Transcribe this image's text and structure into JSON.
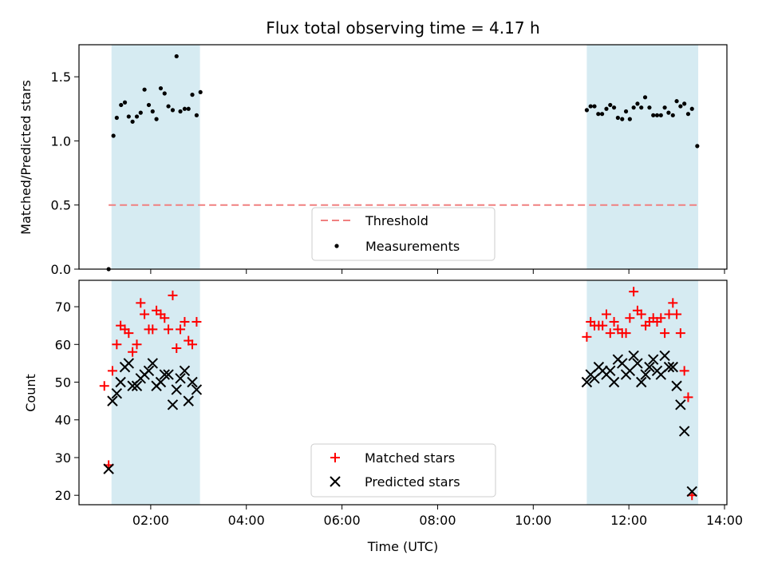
{
  "chart_data": {
    "title": "Flux total observing time = 4.17 h",
    "xlabel": "Time (UTC)",
    "x_unit": "hours UTC",
    "xlim": [
      0.5,
      14.05
    ],
    "xticks": [
      2,
      4,
      6,
      8,
      10,
      12,
      14
    ],
    "xtick_labels": [
      "02:00",
      "04:00",
      "06:00",
      "08:00",
      "10:00",
      "12:00",
      "14:00"
    ],
    "observing_windows": [
      [
        1.18,
        3.03
      ],
      [
        11.12,
        13.45
      ]
    ],
    "window_color": "#add8e6",
    "panels": [
      {
        "type": "scatter",
        "ylabel": "Matched/Predicted stars",
        "ylim": [
          0,
          1.75
        ],
        "yticks": [
          0.0,
          0.5,
          1.0,
          1.5
        ],
        "ytick_labels": [
          "0.0",
          "0.5",
          "1.0",
          "1.5"
        ],
        "legend_placement": "lower-center",
        "series": [
          {
            "name": "Threshold",
            "kind": "dashed-line",
            "color": "#f08080",
            "points": [
              [
                1.12,
                0.5
              ],
              [
                13.45,
                0.5
              ]
            ]
          },
          {
            "name": "Measurements",
            "kind": "dot",
            "color": "#000000",
            "points": [
              [
                1.12,
                0.0
              ],
              [
                1.22,
                1.04
              ],
              [
                1.29,
                1.18
              ],
              [
                1.38,
                1.28
              ],
              [
                1.46,
                1.3
              ],
              [
                1.54,
                1.19
              ],
              [
                1.62,
                1.15
              ],
              [
                1.71,
                1.19
              ],
              [
                1.79,
                1.22
              ],
              [
                1.87,
                1.4
              ],
              [
                1.96,
                1.28
              ],
              [
                2.04,
                1.23
              ],
              [
                2.12,
                1.17
              ],
              [
                2.21,
                1.41
              ],
              [
                2.29,
                1.37
              ],
              [
                2.37,
                1.27
              ],
              [
                2.46,
                1.24
              ],
              [
                2.54,
                1.66
              ],
              [
                2.62,
                1.23
              ],
              [
                2.71,
                1.25
              ],
              [
                2.79,
                1.25
              ],
              [
                2.87,
                1.36
              ],
              [
                2.96,
                1.2
              ],
              [
                3.04,
                1.38
              ],
              [
                11.12,
                1.24
              ],
              [
                11.2,
                1.27
              ],
              [
                11.28,
                1.27
              ],
              [
                11.36,
                1.21
              ],
              [
                11.44,
                1.21
              ],
              [
                11.53,
                1.25
              ],
              [
                11.61,
                1.28
              ],
              [
                11.69,
                1.26
              ],
              [
                11.77,
                1.18
              ],
              [
                11.86,
                1.17
              ],
              [
                11.94,
                1.23
              ],
              [
                12.02,
                1.17
              ],
              [
                12.1,
                1.26
              ],
              [
                12.18,
                1.29
              ],
              [
                12.26,
                1.26
              ],
              [
                12.34,
                1.34
              ],
              [
                12.43,
                1.26
              ],
              [
                12.51,
                1.2
              ],
              [
                12.59,
                1.2
              ],
              [
                12.67,
                1.2
              ],
              [
                12.75,
                1.26
              ],
              [
                12.83,
                1.22
              ],
              [
                12.92,
                1.2
              ],
              [
                13.0,
                1.31
              ],
              [
                13.08,
                1.27
              ],
              [
                13.16,
                1.29
              ],
              [
                13.24,
                1.21
              ],
              [
                13.32,
                1.25
              ],
              [
                13.43,
                0.96
              ]
            ]
          }
        ]
      },
      {
        "type": "scatter",
        "ylabel": "Count",
        "ylim": [
          17.5,
          77
        ],
        "yticks": [
          20,
          30,
          40,
          50,
          60,
          70
        ],
        "ytick_labels": [
          "20",
          "30",
          "40",
          "50",
          "60",
          "70"
        ],
        "legend_placement": "lower-center",
        "series": [
          {
            "name": "Matched stars",
            "kind": "plus",
            "color": "#ff0000",
            "points": [
              [
                1.03,
                49
              ],
              [
                1.12,
                28
              ],
              [
                1.2,
                53
              ],
              [
                1.29,
                60
              ],
              [
                1.37,
                65
              ],
              [
                1.46,
                64
              ],
              [
                1.54,
                63
              ],
              [
                1.62,
                58
              ],
              [
                1.71,
                60
              ],
              [
                1.79,
                71
              ],
              [
                1.87,
                68
              ],
              [
                1.96,
                64
              ],
              [
                2.04,
                64
              ],
              [
                2.12,
                69
              ],
              [
                2.21,
                68
              ],
              [
                2.29,
                67
              ],
              [
                2.37,
                64
              ],
              [
                2.46,
                73
              ],
              [
                2.54,
                59
              ],
              [
                2.62,
                64
              ],
              [
                2.71,
                66
              ],
              [
                2.79,
                61
              ],
              [
                2.87,
                60
              ],
              [
                2.96,
                66
              ],
              [
                11.12,
                62
              ],
              [
                11.2,
                66
              ],
              [
                11.28,
                65
              ],
              [
                11.37,
                65
              ],
              [
                11.45,
                65
              ],
              [
                11.53,
                68
              ],
              [
                11.61,
                63
              ],
              [
                11.69,
                66
              ],
              [
                11.77,
                64
              ],
              [
                11.86,
                63
              ],
              [
                11.94,
                63
              ],
              [
                12.02,
                67
              ],
              [
                12.1,
                74
              ],
              [
                12.18,
                69
              ],
              [
                12.26,
                68
              ],
              [
                12.35,
                65
              ],
              [
                12.43,
                66
              ],
              [
                12.51,
                67
              ],
              [
                12.59,
                66
              ],
              [
                12.67,
                67
              ],
              [
                12.75,
                63
              ],
              [
                12.84,
                68
              ],
              [
                12.92,
                71
              ],
              [
                13.0,
                68
              ],
              [
                13.08,
                63
              ],
              [
                13.16,
                53
              ],
              [
                13.24,
                46
              ],
              [
                13.32,
                20
              ]
            ]
          },
          {
            "name": "Predicted stars",
            "kind": "x",
            "color": "#000000",
            "points": [
              [
                1.12,
                27
              ],
              [
                1.2,
                45
              ],
              [
                1.29,
                47
              ],
              [
                1.37,
                50
              ],
              [
                1.46,
                54
              ],
              [
                1.54,
                55
              ],
              [
                1.62,
                49
              ],
              [
                1.71,
                49
              ],
              [
                1.79,
                51
              ],
              [
                1.87,
                52
              ],
              [
                1.96,
                53
              ],
              [
                2.04,
                55
              ],
              [
                2.12,
                49
              ],
              [
                2.21,
                50
              ],
              [
                2.29,
                52
              ],
              [
                2.37,
                52
              ],
              [
                2.46,
                44
              ],
              [
                2.54,
                48
              ],
              [
                2.62,
                51
              ],
              [
                2.71,
                53
              ],
              [
                2.79,
                45
              ],
              [
                2.87,
                50
              ],
              [
                2.96,
                48
              ],
              [
                11.12,
                50
              ],
              [
                11.2,
                52
              ],
              [
                11.28,
                51
              ],
              [
                11.37,
                54
              ],
              [
                11.45,
                53
              ],
              [
                11.53,
                52
              ],
              [
                11.61,
                53
              ],
              [
                11.69,
                50
              ],
              [
                11.77,
                56
              ],
              [
                11.86,
                55
              ],
              [
                11.94,
                52
              ],
              [
                12.02,
                53
              ],
              [
                12.1,
                57
              ],
              [
                12.18,
                55
              ],
              [
                12.26,
                50
              ],
              [
                12.35,
                52
              ],
              [
                12.43,
                54
              ],
              [
                12.51,
                56
              ],
              [
                12.59,
                53
              ],
              [
                12.67,
                52
              ],
              [
                12.75,
                57
              ],
              [
                12.84,
                54
              ],
              [
                12.92,
                54
              ],
              [
                13.0,
                49
              ],
              [
                13.08,
                44
              ],
              [
                13.16,
                37
              ],
              [
                13.32,
                21
              ]
            ]
          }
        ]
      }
    ]
  }
}
